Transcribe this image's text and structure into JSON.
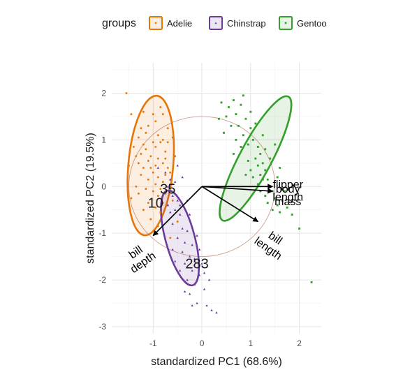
{
  "chart_data": {
    "type": "scatter",
    "title": "",
    "xlabel": "standardized PC1 (68.6%)",
    "ylabel": "standardized PC2 (19.5%)",
    "xlim": [
      -1.85,
      2.45
    ],
    "ylim": [
      -3.15,
      2.65
    ],
    "x_ticks": [
      -1,
      0,
      1,
      2
    ],
    "y_ticks": [
      -3,
      -2,
      -1,
      0,
      1,
      2
    ],
    "grid": true,
    "legend": {
      "title": "groups",
      "placement": "top",
      "entries": [
        "Adelie",
        "Chinstrap",
        "Gentoo"
      ]
    },
    "correlation_circle": {
      "center": [
        0,
        0
      ],
      "radius": 1.5
    },
    "series": [
      {
        "name": "Adelie",
        "color": "#E6760A",
        "marker": "circle",
        "ellipse": {
          "cx": -1.05,
          "cy": 0.45,
          "rx": 0.46,
          "ry": 1.5,
          "angle_deg": 5
        },
        "points": [
          [
            -1.55,
            2.0
          ],
          [
            -1.2,
            1.6
          ],
          [
            -1.1,
            1.3
          ],
          [
            -1.0,
            1.55
          ],
          [
            -0.95,
            1.4
          ],
          [
            -0.8,
            1.55
          ],
          [
            -0.85,
            0.95
          ],
          [
            -1.3,
            1.05
          ],
          [
            -1.4,
            0.85
          ],
          [
            -1.25,
            0.7
          ],
          [
            -1.15,
            0.8
          ],
          [
            -1.05,
            0.65
          ],
          [
            -0.95,
            0.85
          ],
          [
            -0.75,
            0.75
          ],
          [
            -0.7,
            0.95
          ],
          [
            -0.9,
            1.1
          ],
          [
            -1.3,
            0.5
          ],
          [
            -1.2,
            0.4
          ],
          [
            -1.1,
            0.55
          ],
          [
            -0.95,
            0.45
          ],
          [
            -0.8,
            0.5
          ],
          [
            -0.7,
            0.4
          ],
          [
            -1.25,
            0.25
          ],
          [
            -1.1,
            0.15
          ],
          [
            -1.0,
            0.3
          ],
          [
            -0.9,
            0.2
          ],
          [
            -0.8,
            0.1
          ],
          [
            -0.65,
            0.3
          ],
          [
            -1.15,
            -0.05
          ],
          [
            -1.0,
            -0.1
          ],
          [
            -0.9,
            -0.2
          ],
          [
            -0.75,
            -0.15
          ],
          [
            -0.6,
            0.05
          ],
          [
            -1.1,
            -0.35
          ],
          [
            -0.95,
            -0.45
          ],
          [
            -0.85,
            -0.55
          ],
          [
            -0.7,
            -0.4
          ],
          [
            -1.05,
            -0.7
          ],
          [
            -0.9,
            -0.85
          ],
          [
            -1.35,
            0.0
          ],
          [
            -1.45,
            -0.25
          ],
          [
            -1.2,
            -0.5
          ],
          [
            -0.55,
            0.65
          ],
          [
            -0.6,
            -0.3
          ],
          [
            -0.75,
            0.6
          ],
          [
            -1.5,
            0.45
          ],
          [
            -1.25,
            1.25
          ],
          [
            -0.85,
            1.7
          ],
          [
            -1.05,
            1.9
          ],
          [
            -0.7,
            1.25
          ],
          [
            -1.35,
            0.65
          ],
          [
            -0.5,
            -0.75
          ],
          [
            -0.65,
            -1.1
          ],
          [
            -1.0,
            0.95
          ],
          [
            -0.9,
            0.6
          ],
          [
            -1.15,
            1.15
          ],
          [
            -0.8,
            -0.35
          ],
          [
            -1.3,
            -0.15
          ],
          [
            -0.95,
            0.05
          ],
          [
            -1.05,
            0.4
          ],
          [
            -0.8,
            1.0
          ],
          [
            -1.2,
            0.9
          ],
          [
            -0.75,
            0.25
          ],
          [
            -0.85,
            -0.05
          ],
          [
            -1.45,
            1.55
          ],
          [
            -0.6,
            1.05
          ]
        ]
      },
      {
        "name": "Chinstrap",
        "color": "#6A3D9A",
        "marker": "triangle",
        "ellipse": {
          "cx": -0.45,
          "cy": -1.1,
          "rx": 0.3,
          "ry": 1.05,
          "angle_deg": -15
        },
        "points": [
          [
            -0.9,
            0.4
          ],
          [
            -0.75,
            0.3
          ],
          [
            -0.7,
            0.0
          ],
          [
            -0.6,
            -0.2
          ],
          [
            -0.55,
            -0.5
          ],
          [
            -0.6,
            -0.8
          ],
          [
            -0.45,
            -0.6
          ],
          [
            -0.4,
            -0.9
          ],
          [
            -0.5,
            -1.1
          ],
          [
            -0.35,
            -1.2
          ],
          [
            -0.3,
            -0.95
          ],
          [
            -0.4,
            -1.4
          ],
          [
            -0.25,
            -1.5
          ],
          [
            -0.35,
            -1.65
          ],
          [
            -0.2,
            -1.8
          ],
          [
            -0.3,
            -2.0
          ],
          [
            -0.15,
            -2.1
          ],
          [
            -0.25,
            -2.3
          ],
          [
            -0.05,
            -1.9
          ],
          [
            -0.1,
            -2.5
          ],
          [
            0.05,
            -2.2
          ],
          [
            0.1,
            -2.55
          ],
          [
            0.2,
            -2.65
          ],
          [
            0.3,
            -2.7
          ],
          [
            -0.45,
            -0.4
          ],
          [
            -0.5,
            -0.3
          ],
          [
            -0.55,
            0.1
          ],
          [
            -0.65,
            -0.55
          ],
          [
            -0.45,
            -1.8
          ],
          [
            -0.35,
            -2.25
          ],
          [
            -0.2,
            -1.25
          ],
          [
            -0.15,
            -1.55
          ],
          [
            -0.1,
            -1.05
          ],
          [
            -0.05,
            -1.35
          ],
          [
            0.0,
            -1.65
          ],
          [
            0.05,
            -1.85
          ],
          [
            -0.6,
            -1.35
          ],
          [
            -0.55,
            -1.6
          ],
          [
            -0.7,
            -0.4
          ],
          [
            -0.5,
            0.45
          ],
          [
            -0.4,
            0.2
          ],
          [
            -0.3,
            -0.3
          ],
          [
            -0.25,
            -0.6
          ],
          [
            -0.65,
            0.15
          ],
          [
            -0.2,
            -2.55
          ],
          [
            0.15,
            -2.0
          ]
        ]
      },
      {
        "name": "Gentoo",
        "color": "#33A02C",
        "marker": "square",
        "ellipse": {
          "cx": 1.1,
          "cy": 0.6,
          "rx": 0.33,
          "ry": 1.5,
          "angle_deg": 28
        },
        "points": [
          [
            0.4,
            1.8
          ],
          [
            0.55,
            1.7
          ],
          [
            0.65,
            1.85
          ],
          [
            0.8,
            1.75
          ],
          [
            0.7,
            1.55
          ],
          [
            0.75,
            1.3
          ],
          [
            0.9,
            1.45
          ],
          [
            0.85,
            1.1
          ],
          [
            1.0,
            1.25
          ],
          [
            0.95,
            0.9
          ],
          [
            1.05,
            1.0
          ],
          [
            1.15,
            0.85
          ],
          [
            1.1,
            0.6
          ],
          [
            1.2,
            0.7
          ],
          [
            1.25,
            0.5
          ],
          [
            1.3,
            0.35
          ],
          [
            1.2,
            0.25
          ],
          [
            1.35,
            0.15
          ],
          [
            1.4,
            0.0
          ],
          [
            1.45,
            -0.1
          ],
          [
            1.5,
            -0.25
          ],
          [
            1.55,
            -0.4
          ],
          [
            1.6,
            -0.55
          ],
          [
            1.65,
            -0.3
          ],
          [
            1.7,
            -0.1
          ],
          [
            0.6,
            1.3
          ],
          [
            0.7,
            1.0
          ],
          [
            0.8,
            0.85
          ],
          [
            0.95,
            0.55
          ],
          [
            1.0,
            0.35
          ],
          [
            1.05,
            0.2
          ],
          [
            1.15,
            0.05
          ],
          [
            1.2,
            -0.1
          ],
          [
            1.3,
            -0.2
          ],
          [
            1.35,
            -0.35
          ],
          [
            1.45,
            -0.5
          ],
          [
            0.5,
            1.5
          ],
          [
            0.45,
            1.15
          ],
          [
            1.55,
            0.2
          ],
          [
            1.6,
            0.4
          ],
          [
            1.3,
            0.8
          ],
          [
            1.4,
            0.6
          ],
          [
            0.85,
            1.95
          ],
          [
            1.0,
            1.6
          ],
          [
            1.1,
            1.35
          ],
          [
            1.75,
            -0.45
          ],
          [
            1.85,
            -0.6
          ],
          [
            2.0,
            -0.9
          ],
          [
            2.25,
            -2.05
          ],
          [
            0.35,
            1.45
          ],
          [
            1.25,
            1.1
          ],
          [
            1.5,
            0.9
          ],
          [
            0.65,
            0.7
          ],
          [
            0.9,
            0.25
          ],
          [
            1.15,
            0.45
          ],
          [
            1.25,
            0.15
          ]
        ]
      }
    ],
    "loadings": [
      {
        "label": "flipper length",
        "label_lines": [
          "flipper",
          "length"
        ],
        "x": 1.45,
        "y": 0.0,
        "text_angle": 0
      },
      {
        "label": "body mass",
        "label_lines": [
          "body",
          "mass"
        ],
        "x": 1.45,
        "y": -0.1,
        "text_angle": 0
      },
      {
        "label": "bill length",
        "label_lines": [
          "bill",
          "length"
        ],
        "x": 1.15,
        "y": -0.75,
        "text_angle": 35
      },
      {
        "label": "bill depth",
        "label_lines": [
          "bill",
          "depth"
        ],
        "x": -1.0,
        "y": -1.05,
        "text_angle": -35
      }
    ],
    "outlier_labels": [
      {
        "text": "35",
        "x": -0.7,
        "y": -0.15
      },
      {
        "text": "10",
        "x": -0.95,
        "y": -0.45
      },
      {
        "text": "283",
        "x": -0.1,
        "y": -1.75
      }
    ]
  }
}
